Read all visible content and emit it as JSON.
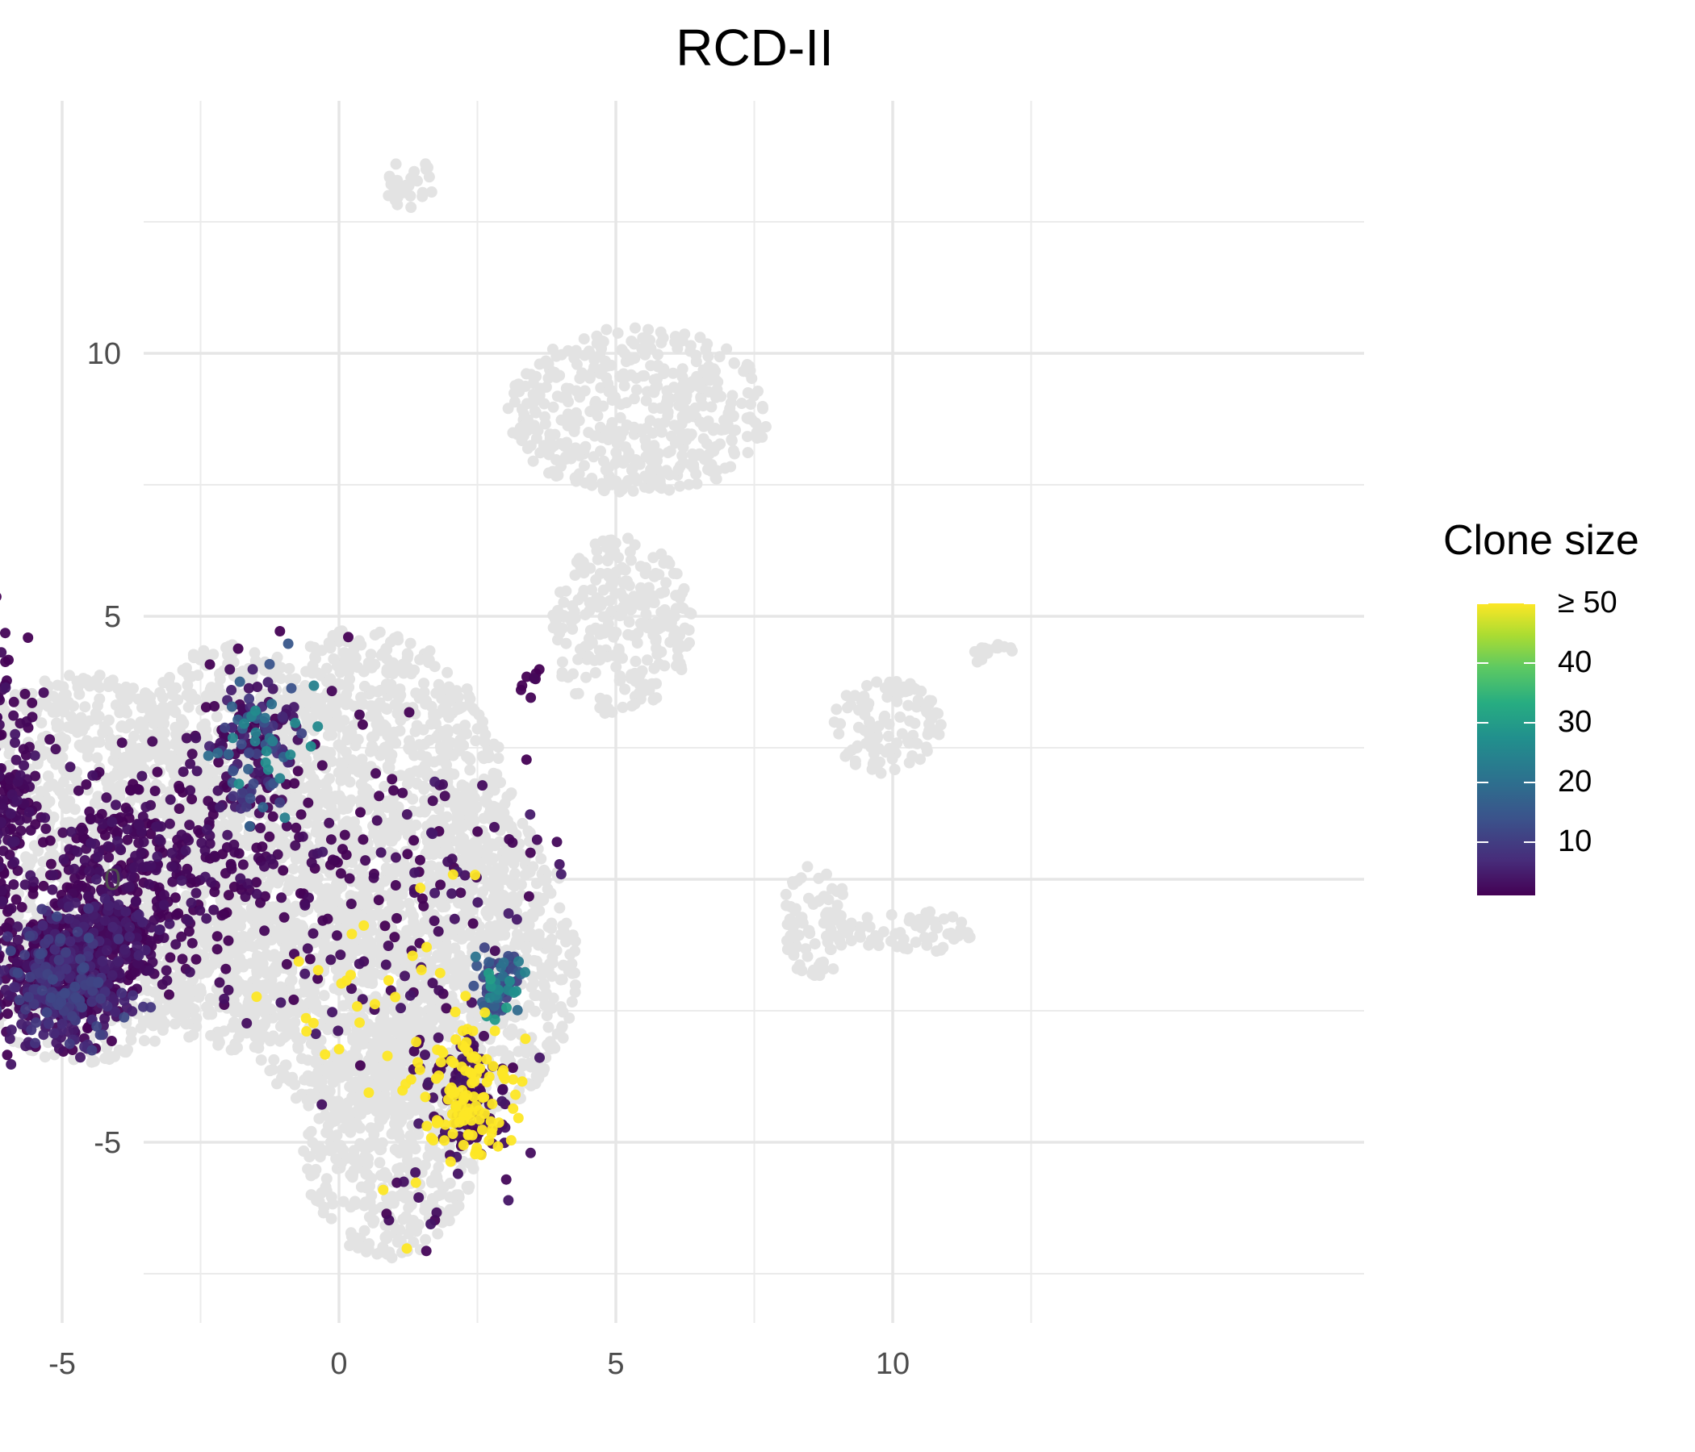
{
  "chart_data": {
    "type": "scatter",
    "title": "RCD-II",
    "xlabel": "",
    "ylabel": "",
    "xlim": [
      -7.5,
      13.5
    ],
    "ylim": [
      -8.5,
      14.7
    ],
    "x_ticks": [
      -5,
      0,
      5,
      10
    ],
    "x_tick_labels": [
      "-5",
      "0",
      "5",
      "10"
    ],
    "y_ticks": [
      -5,
      0,
      5,
      10
    ],
    "y_tick_labels": [
      "-5",
      "0",
      "5",
      "10"
    ],
    "grid": true,
    "legend_position": "right",
    "background_series": {
      "name": "",
      "color": "#e3e3e3",
      "regions": [
        {
          "cx": -4.6,
          "cy": 0.2,
          "rx": 2.8,
          "ry": 3.7
        },
        {
          "cx": -1.9,
          "cy": 0.6,
          "rx": 2.2,
          "ry": 3.9
        },
        {
          "cx": 0.5,
          "cy": 0.0,
          "rx": 2.8,
          "ry": 4.8
        },
        {
          "cx": 2.1,
          "cy": -1.6,
          "rx": 2.2,
          "ry": 3.2
        },
        {
          "cx": 0.9,
          "cy": -5.0,
          "rx": 1.6,
          "ry": 2.2
        },
        {
          "cx": 5.4,
          "cy": 8.9,
          "rx": 2.4,
          "ry": 1.6
        },
        {
          "cx": 5.1,
          "cy": 4.8,
          "rx": 1.3,
          "ry": 1.7
        },
        {
          "cx": 1.3,
          "cy": 13.2,
          "rx": 0.5,
          "ry": 0.5
        },
        {
          "cx": 9.9,
          "cy": 2.9,
          "rx": 1.0,
          "ry": 0.9
        },
        {
          "cx": 8.6,
          "cy": -0.8,
          "rx": 0.6,
          "ry": 1.1
        },
        {
          "cx": 10.3,
          "cy": -1.0,
          "rx": 1.2,
          "ry": 0.4
        },
        {
          "cx": 11.8,
          "cy": 4.3,
          "rx": 0.5,
          "ry": 0.25
        }
      ]
    },
    "colorbar": {
      "title": "Clone size",
      "min": 1,
      "max": 50,
      "ticks": [
        10,
        20,
        30,
        40,
        50
      ],
      "tick_labels": [
        "10",
        "20",
        "30",
        "40",
        "≥ 50"
      ],
      "colors": [
        "#440154",
        "#472c7a",
        "#3b528b",
        "#2c728e",
        "#21908d",
        "#27ad81",
        "#5dc962",
        "#aadc32",
        "#fde725"
      ]
    },
    "clusters": [
      {
        "name": "A",
        "cx": -5.0,
        "cy": -2.0,
        "sx": 0.55,
        "sy": 0.55,
        "n": 520,
        "size_range": [
          1,
          12
        ]
      },
      {
        "name": "B",
        "cx": -4.3,
        "cy": -1.1,
        "sx": 0.6,
        "sy": 0.45,
        "n": 300,
        "size_range": [
          1,
          6
        ]
      },
      {
        "name": "C",
        "cx": -6.3,
        "cy": 1.3,
        "sx": 0.45,
        "sy": 1.5,
        "n": 360,
        "size_range": [
          1,
          4
        ]
      },
      {
        "name": "D",
        "cx": -3.5,
        "cy": 0.3,
        "sx": 1.1,
        "sy": 1.0,
        "n": 300,
        "size_range": [
          1,
          4
        ]
      },
      {
        "name": "E",
        "cx": -1.5,
        "cy": 2.7,
        "sx": 0.45,
        "sy": 0.7,
        "n": 150,
        "size_range": [
          1,
          25
        ]
      },
      {
        "name": "F",
        "cx": -1.2,
        "cy": 0.5,
        "sx": 1.1,
        "sy": 1.5,
        "n": 120,
        "size_range": [
          1,
          3
        ]
      },
      {
        "name": "G",
        "cx": 2.3,
        "cy": -4.1,
        "sx": 0.45,
        "sy": 0.7,
        "n": 220,
        "size_range": [
          1,
          50
        ]
      },
      {
        "name": "H",
        "cx": 2.9,
        "cy": -2.0,
        "sx": 0.22,
        "sy": 0.28,
        "n": 70,
        "size_range": [
          10,
          30
        ]
      },
      {
        "name": "I",
        "cx": 0.8,
        "cy": -2.0,
        "sx": 1.0,
        "sy": 1.0,
        "n": 70,
        "size_range": [
          1,
          50
        ]
      },
      {
        "name": "J",
        "cx": 1.8,
        "cy": 0.3,
        "sx": 1.2,
        "sy": 1.1,
        "n": 55,
        "size_range": [
          1,
          5
        ]
      },
      {
        "name": "K",
        "cx": 1.1,
        "cy": -6.0,
        "sx": 0.6,
        "sy": 0.6,
        "n": 14,
        "size_range": [
          1,
          50
        ]
      },
      {
        "name": "L",
        "cx": 3.5,
        "cy": 3.7,
        "sx": 0.12,
        "sy": 0.15,
        "n": 8,
        "size_range": [
          1,
          2
        ]
      }
    ]
  }
}
